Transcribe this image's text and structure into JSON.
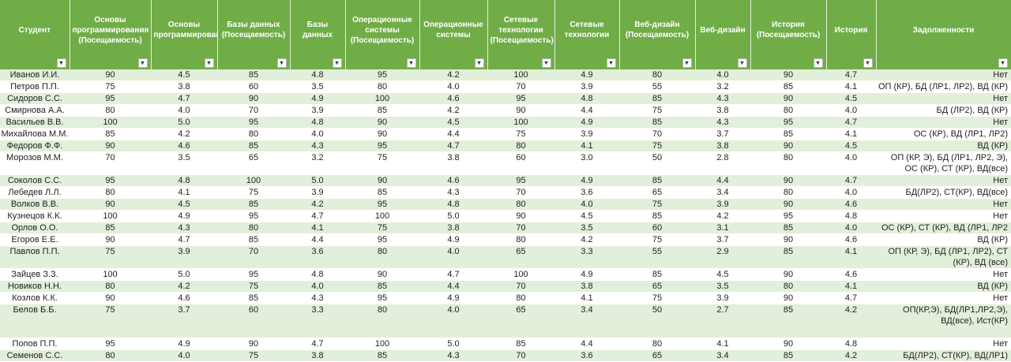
{
  "headers": [
    "Студент",
    "Основы программирования (Посещаемость)",
    "Основы программирования",
    "Базы данных (Посещаемость)",
    "Базы данных",
    "Операционные системы (Посещаемость)",
    "Операционные системы",
    "Сетевые технологии (Посещаемость)",
    "Сетевые технологии",
    "Веб-дизайн (Посещаемость)",
    "Веб-дизайн",
    "История (Посещаемость)",
    "История",
    "Задолженности"
  ],
  "filter_glyph": "▾",
  "rows": [
    {
      "lines": 1,
      "cells": [
        "Иванов И.И.",
        "90",
        "4.5",
        "85",
        "4.8",
        "95",
        "4.2",
        "100",
        "4.9",
        "80",
        "4.0",
        "90",
        "4.7",
        "Нет"
      ]
    },
    {
      "lines": 1,
      "cells": [
        "Петров П.П.",
        "75",
        "3.8",
        "60",
        "3.5",
        "80",
        "4.0",
        "70",
        "3.9",
        "55",
        "3.2",
        "85",
        "4.1",
        "ОП (КР), БД (ЛР1, ЛР2), ВД (КР)"
      ]
    },
    {
      "lines": 1,
      "cells": [
        "Сидоров С.С.",
        "95",
        "4.7",
        "90",
        "4.9",
        "100",
        "4.6",
        "95",
        "4.8",
        "85",
        "4.3",
        "90",
        "4.5",
        "Нет"
      ]
    },
    {
      "lines": 1,
      "cells": [
        "Смирнова А.А.",
        "80",
        "4.0",
        "70",
        "3.9",
        "85",
        "4.2",
        "90",
        "4.4",
        "75",
        "3.8",
        "80",
        "4.0",
        "БД (ЛР2), ВД (КР)"
      ]
    },
    {
      "lines": 1,
      "cells": [
        "Васильев В.В.",
        "100",
        "5.0",
        "95",
        "4.8",
        "90",
        "4.5",
        "100",
        "4.9",
        "85",
        "4.3",
        "95",
        "4.7",
        "Нет"
      ]
    },
    {
      "lines": 1,
      "cells": [
        "Михайлова М.М.",
        "85",
        "4.2",
        "80",
        "4.0",
        "90",
        "4.4",
        "75",
        "3.9",
        "70",
        "3.7",
        "85",
        "4.1",
        "ОС (КР), ВД (ЛР1, ЛР2)"
      ]
    },
    {
      "lines": 1,
      "cells": [
        "Федоров Ф.Ф.",
        "90",
        "4.6",
        "85",
        "4.3",
        "95",
        "4.7",
        "80",
        "4.1",
        "75",
        "3.8",
        "90",
        "4.5",
        "ВД (КР)"
      ]
    },
    {
      "lines": 2,
      "cells": [
        "Морозов М.М.",
        "70",
        "3.5",
        "65",
        "3.2",
        "75",
        "3.8",
        "60",
        "3.0",
        "50",
        "2.8",
        "80",
        "4.0",
        "ОП (КР, Э), БД (ЛР1, ЛР2, Э), ОС (КР), СТ (КР), ВД(все)"
      ]
    },
    {
      "lines": 1,
      "cells": [
        "Соколов С.С.",
        "95",
        "4.8",
        "100",
        "5.0",
        "90",
        "4.6",
        "95",
        "4.9",
        "85",
        "4.4",
        "90",
        "4.7",
        "Нет"
      ]
    },
    {
      "lines": 1,
      "cells": [
        "Лебедев Л.Л.",
        "80",
        "4.1",
        "75",
        "3.9",
        "85",
        "4.3",
        "70",
        "3.6",
        "65",
        "3.4",
        "80",
        "4.0",
        "БД(ЛР2), СТ(КР), ВД(все)"
      ]
    },
    {
      "lines": 1,
      "cells": [
        "Волков В.В.",
        "90",
        "4.5",
        "85",
        "4.2",
        "95",
        "4.8",
        "80",
        "4.0",
        "75",
        "3.9",
        "90",
        "4.6",
        "Нет"
      ]
    },
    {
      "lines": 1,
      "cells": [
        "Кузнецов К.К.",
        "100",
        "4.9",
        "95",
        "4.7",
        "100",
        "5.0",
        "90",
        "4.5",
        "85",
        "4.2",
        "95",
        "4.8",
        "Нет"
      ]
    },
    {
      "lines": 1,
      "cells": [
        "Орлов О.О.",
        "85",
        "4.3",
        "80",
        "4.1",
        "75",
        "3.8",
        "70",
        "3.5",
        "60",
        "3.1",
        "85",
        "4.0",
        "ОС (КР), СТ (КР), ВД (ЛР1, ЛР2"
      ]
    },
    {
      "lines": 1,
      "cells": [
        "Егоров Е.Е.",
        "90",
        "4.7",
        "85",
        "4.4",
        "95",
        "4.9",
        "80",
        "4.2",
        "75",
        "3.7",
        "90",
        "4.6",
        "ВД (КР)"
      ]
    },
    {
      "lines": 2,
      "cells": [
        "Павлов П.П.",
        "75",
        "3.9",
        "70",
        "3.6",
        "80",
        "4.0",
        "65",
        "3.3",
        "55",
        "2.9",
        "85",
        "4.1",
        "ОП (КР, Э), БД (ЛР1, ЛР2), СТ (КР), ВД (все)"
      ]
    },
    {
      "lines": 1,
      "cells": [
        "Зайцев З.З.",
        "100",
        "5.0",
        "95",
        "4.8",
        "90",
        "4.7",
        "100",
        "4.9",
        "85",
        "4.5",
        "90",
        "4.6",
        "Нет"
      ]
    },
    {
      "lines": 1,
      "cells": [
        "Новиков Н.Н.",
        "80",
        "4.2",
        "75",
        "4.0",
        "85",
        "4.4",
        "70",
        "3.8",
        "65",
        "3.5",
        "80",
        "4.1",
        "ВД (КР)"
      ]
    },
    {
      "lines": 1,
      "cells": [
        "Козлов К.К.",
        "90",
        "4.6",
        "85",
        "4.3",
        "95",
        "4.9",
        "80",
        "4.1",
        "75",
        "3.9",
        "90",
        "4.7",
        "Нет"
      ]
    },
    {
      "lines": 3,
      "cells": [
        "Белов Б.Б.",
        "75",
        "3.7",
        "60",
        "3.3",
        "80",
        "4.0",
        "65",
        "3.4",
        "50",
        "2.7",
        "85",
        "4.2",
        "ОП(КР,Э), БД(ЛР1,ЛР2,Э), ВД(все), Ист(КР)"
      ]
    },
    {
      "lines": 1,
      "cells": [
        "Попов П.П.",
        "95",
        "4.9",
        "90",
        "4.7",
        "100",
        "5.0",
        "85",
        "4.4",
        "80",
        "4.1",
        "90",
        "4.8",
        "Нет"
      ]
    },
    {
      "lines": 1,
      "cells": [
        "Семенов С.С.",
        "80",
        "4.0",
        "75",
        "3.8",
        "85",
        "4.3",
        "70",
        "3.6",
        "65",
        "3.4",
        "85",
        "4.2",
        "БД(ЛР2), СТ(КР), ВД(ЛР1)"
      ]
    }
  ]
}
